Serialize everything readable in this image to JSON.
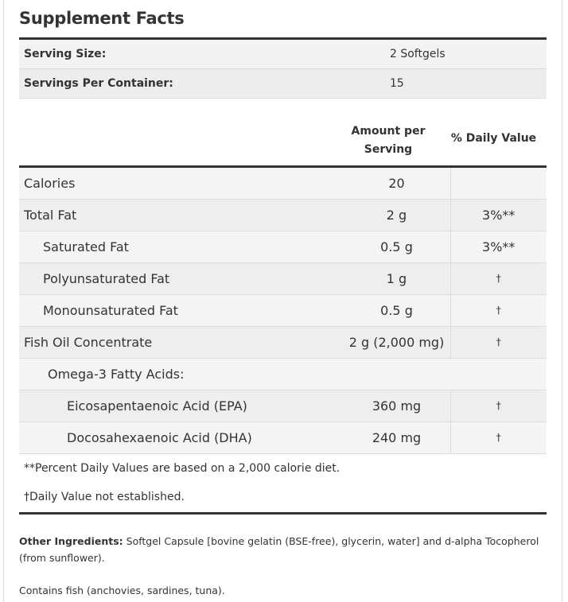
{
  "title": "Supplement Facts",
  "serving": [
    {
      "label": "Serving Size:",
      "value": "2 Softgels"
    },
    {
      "label": "Servings Per Container:",
      "value": "15"
    }
  ],
  "header": {
    "amount_l1": "Amount per",
    "amount_l2": "Serving",
    "daily_value": "% Daily Value"
  },
  "nutrients": [
    {
      "name": "Calories",
      "amount": "20",
      "dv": ""
    },
    {
      "name": "Total Fat",
      "amount": "2 g",
      "dv": "3%**"
    },
    {
      "name": "Saturated Fat",
      "amount": "0.5 g",
      "dv": "3%**"
    },
    {
      "name": "Polyunsaturated Fat",
      "amount": "1 g",
      "dv": "†"
    },
    {
      "name": "Monounsaturated Fat",
      "amount": "0.5 g",
      "dv": "†"
    },
    {
      "name": "Fish Oil Concentrate",
      "amount": "2 g (2,000 mg)",
      "dv": "†"
    },
    {
      "name": "Omega-3 Fatty Acids:"
    },
    {
      "name": "Eicosapentaenoic Acid (EPA)",
      "amount": "360 mg",
      "dv": "†"
    },
    {
      "name": "Docosahexaenoic Acid (DHA)",
      "amount": "240 mg",
      "dv": "†"
    }
  ],
  "notes": [
    "**Percent Daily Values are based on a 2,000 calorie diet.",
    "†Daily Value not established."
  ],
  "other_ingredients": {
    "label": "Other Ingredients:",
    "text": " Softgel Capsule [bovine gelatin (BSE-free), glycerin, water] and d-alpha Tocopherol (from sunflower)."
  },
  "contains": "Contains fish (anchovies, sardines, tuna)."
}
